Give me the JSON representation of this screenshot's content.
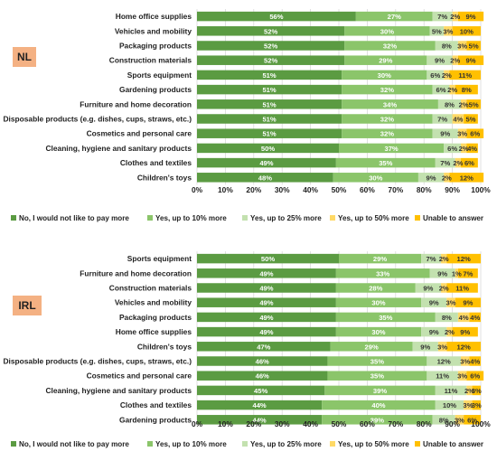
{
  "colors": {
    "no_pay_more": "#5B9B42",
    "up_to_10": "#8BC56A",
    "up_to_25": "#C3E1AF",
    "up_to_50": "#FFD966",
    "unable": "#FFC000",
    "country_box": "#F4B183",
    "grid": "#D9D9D9"
  },
  "chart_data": [
    {
      "type": "bar",
      "orientation": "horizontal",
      "stacked": true,
      "country_label": "NL",
      "categories": [
        "Home office supplies",
        "Vehicles and mobility",
        "Packaging products",
        "Construction materials",
        "Sports equipment",
        "Gardening products",
        "Furniture and home decoration",
        "Disposable products (e.g. dishes, cups, straws, etc.)",
        "Cosmetics and personal care",
        "Cleaning, hygiene and sanitary products",
        "Clothes and textiles",
        "Children's toys"
      ],
      "series": [
        {
          "name": "No, I would not like to pay more",
          "values": [
            56,
            52,
            52,
            52,
            51,
            51,
            51,
            51,
            51,
            50,
            49,
            48
          ]
        },
        {
          "name": "Yes, up to 10% more",
          "values": [
            27,
            30,
            32,
            29,
            30,
            32,
            34,
            32,
            32,
            37,
            35,
            30
          ]
        },
        {
          "name": "Yes, up to 25% more",
          "values": [
            7,
            5,
            8,
            9,
            6,
            6,
            8,
            7,
            9,
            6,
            7,
            9
          ]
        },
        {
          "name": "Yes, up to 50% more",
          "values": [
            2,
            3,
            3,
            2,
            2,
            2,
            2,
            4,
            3,
            2,
            2,
            2
          ]
        },
        {
          "name": "Unable to answer",
          "values": [
            9,
            10,
            5,
            9,
            11,
            8,
            5,
            5,
            6,
            4,
            6,
            12
          ]
        }
      ],
      "data_labels": [
        [
          "56%",
          "27%",
          "7%",
          "2%",
          "9%"
        ],
        [
          "52%",
          "30%",
          "5%",
          "3%",
          "10%"
        ],
        [
          "52%",
          "32%",
          "8%",
          "3%",
          "5%"
        ],
        [
          "52%",
          "29%",
          "9%",
          "2%",
          "9%"
        ],
        [
          "51%",
          "30%",
          "6%",
          "2%",
          "11%"
        ],
        [
          "51%",
          "32%",
          "6%",
          "2%",
          "8%"
        ],
        [
          "51%",
          "34%",
          "8%",
          "2%",
          "5%"
        ],
        [
          "51%",
          "32%",
          "7%",
          "4%",
          "5%"
        ],
        [
          "51%",
          "32%",
          "9%",
          "3%",
          "6%"
        ],
        [
          "50%",
          "37%",
          "6%",
          "2%",
          "4%"
        ],
        [
          "49%",
          "35%",
          "7%",
          "2%",
          "6%"
        ],
        [
          "48%",
          "30%",
          "9%",
          "2%",
          "12%"
        ]
      ],
      "xlim": [
        0,
        100
      ],
      "x_ticks": [
        "0%",
        "10%",
        "20%",
        "30%",
        "40%",
        "50%",
        "60%",
        "70%",
        "80%",
        "90%",
        "100%"
      ],
      "grid": true,
      "legend": "bottom"
    },
    {
      "type": "bar",
      "orientation": "horizontal",
      "stacked": true,
      "country_label": "IRL",
      "categories": [
        "Sports equipment",
        "Furniture and home decoration",
        "Construction materials",
        "Vehicles and mobility",
        "Packaging products",
        "Home office supplies",
        "Children's toys",
        "Disposable products (e.g. dishes, cups, straws, etc.)",
        "Cosmetics and personal care",
        "Cleaning, hygiene and sanitary products",
        "Clothes and textiles",
        "Gardening products"
      ],
      "series": [
        {
          "name": "No, I would not like to pay more",
          "values": [
            50,
            49,
            49,
            49,
            49,
            49,
            47,
            46,
            46,
            45,
            44,
            44
          ]
        },
        {
          "name": "Yes, up to 10% more",
          "values": [
            29,
            33,
            28,
            30,
            35,
            30,
            29,
            35,
            35,
            39,
            40,
            39
          ]
        },
        {
          "name": "Yes, up to 25% more",
          "values": [
            7,
            9,
            9,
            9,
            8,
            9,
            9,
            12,
            11,
            11,
            10,
            8
          ]
        },
        {
          "name": "Yes, up to 50% more",
          "values": [
            2,
            1,
            2,
            3,
            4,
            2,
            3,
            3,
            3,
            2,
            3,
            3
          ]
        },
        {
          "name": "Unable to answer",
          "values": [
            12,
            7,
            11,
            9,
            4,
            9,
            12,
            4,
            6,
            3,
            3,
            6
          ]
        }
      ],
      "data_labels": [
        [
          "50%",
          "29%",
          "7%",
          "2%",
          "12%"
        ],
        [
          "49%",
          "33%",
          "9%",
          "1%",
          "7%"
        ],
        [
          "49%",
          "28%",
          "9%",
          "2%",
          "11%"
        ],
        [
          "49%",
          "30%",
          "9%",
          "3%",
          "9%"
        ],
        [
          "49%",
          "35%",
          "8%",
          "4%",
          "4%"
        ],
        [
          "49%",
          "30%",
          "9%",
          "2%",
          "9%"
        ],
        [
          "47%",
          "29%",
          "9%",
          "3%",
          "12%"
        ],
        [
          "46%",
          "35%",
          "12%",
          "3%",
          "4%"
        ],
        [
          "46%",
          "35%",
          "11%",
          "3%",
          "6%"
        ],
        [
          "45%",
          "39%",
          "11%",
          "2%",
          "3%"
        ],
        [
          "44%",
          "40%",
          "10%",
          "3%",
          "3%"
        ],
        [
          "44%",
          "39%",
          "8%",
          "3%",
          "6%"
        ]
      ],
      "xlim": [
        0,
        100
      ],
      "x_ticks": [
        "0%",
        "10%",
        "20%",
        "30%",
        "40%",
        "50%",
        "60%",
        "70%",
        "80%",
        "90%",
        "100%"
      ],
      "grid": true,
      "legend": "bottom"
    }
  ]
}
